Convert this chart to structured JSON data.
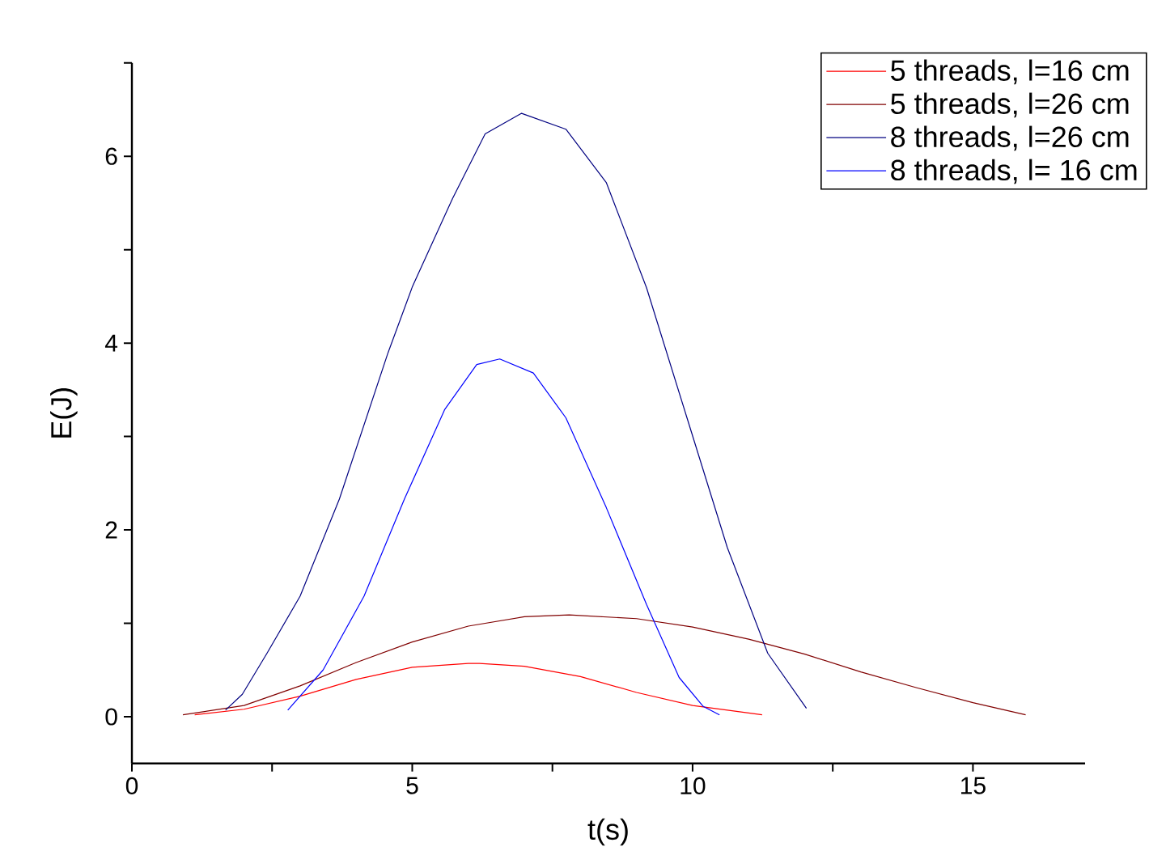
{
  "chart_data": {
    "type": "line",
    "xlabel": "t(s)",
    "ylabel": "E(J)",
    "xlim": [
      0,
      17
    ],
    "ylim": [
      -0.5,
      7
    ],
    "xticks": [
      0,
      {
        "value": 2.5,
        "label": null
      },
      5,
      {
        "value": 7.5,
        "label": null
      },
      10,
      {
        "value": 12.5,
        "label": null
      },
      15
    ],
    "yticks": [
      0,
      {
        "value": 1,
        "label": null
      },
      2,
      {
        "value": 3,
        "label": null
      },
      4,
      {
        "value": 5,
        "label": null
      },
      6,
      {
        "value": 7,
        "label": null
      }
    ],
    "legend": "top right",
    "series": [
      {
        "name": "5 threads, l=16 cm",
        "color": "#ff0000",
        "x": [
          1.12,
          2,
          3,
          4,
          5,
          6,
          6.2,
          7,
          8,
          9,
          10,
          11,
          11.24
        ],
        "values": [
          0.02,
          0.08,
          0.22,
          0.4,
          0.53,
          0.57,
          0.57,
          0.54,
          0.43,
          0.26,
          0.12,
          0.04,
          0.02
        ]
      },
      {
        "name": "5 threads, l=26 cm",
        "color": "#800000",
        "x": [
          0.91,
          2,
          3,
          4,
          5,
          6,
          7,
          7.8,
          9,
          10,
          11,
          12,
          13,
          14,
          15,
          15.94
        ],
        "values": [
          0.02,
          0.12,
          0.33,
          0.58,
          0.8,
          0.97,
          1.07,
          1.09,
          1.05,
          0.96,
          0.83,
          0.67,
          0.48,
          0.31,
          0.15,
          0.02
        ]
      },
      {
        "name": "8 threads, l=26 cm",
        "color": "#000080",
        "x": [
          1.67,
          1.97,
          2.41,
          3.0,
          3.7,
          4.57,
          5.0,
          5.72,
          6.3,
          6.95,
          7.74,
          8.46,
          9.18,
          9.9,
          10.62,
          11.34,
          12.03
        ],
        "values": [
          0.07,
          0.24,
          0.68,
          1.29,
          2.33,
          3.9,
          4.6,
          5.55,
          6.24,
          6.46,
          6.29,
          5.72,
          4.59,
          3.2,
          1.81,
          0.68,
          0.09
        ]
      },
      {
        "name": "8 threads, l= 16 cm",
        "color": "#0000ff",
        "x": [
          2.78,
          3.41,
          4.14,
          4.86,
          5.58,
          6.15,
          6.56,
          7.16,
          7.74,
          8.46,
          9.18,
          9.76,
          10.19,
          10.48
        ],
        "values": [
          0.07,
          0.5,
          1.29,
          2.33,
          3.29,
          3.77,
          3.83,
          3.68,
          3.2,
          2.24,
          1.2,
          0.42,
          0.11,
          0.02
        ]
      }
    ]
  }
}
